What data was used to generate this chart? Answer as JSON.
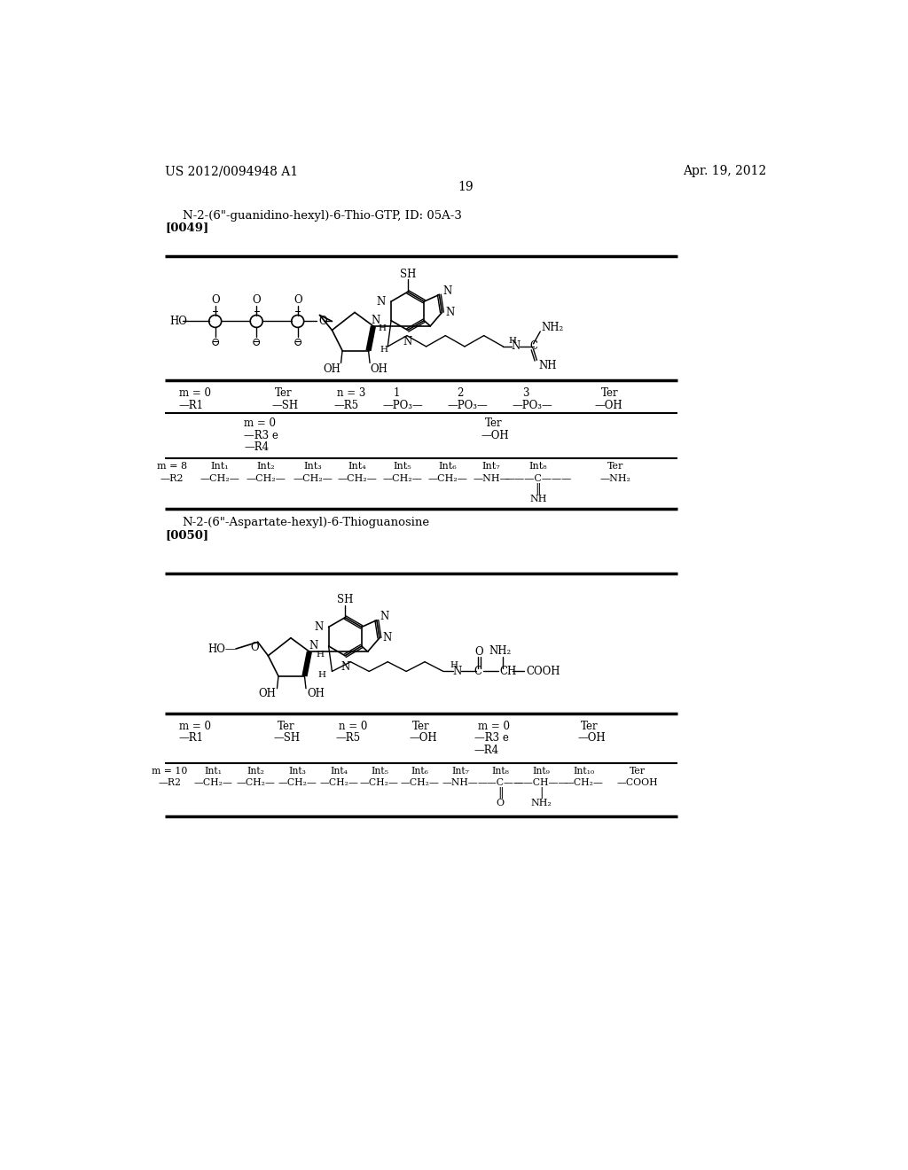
{
  "page_number": "19",
  "header_left": "US 2012/0094948 A1",
  "header_right": "Apr. 19, 2012",
  "bg_color": "#ffffff",
  "section1_title": "N-2-(6\"-guanidino-hexyl)-6-Thio-GTP, ID: 05A-3",
  "section1_ref": "[0049]",
  "section2_title": "N-2-(6\"-Aspartate-hexyl)-6-Thioguanosine",
  "section2_ref": "[0050]",
  "hline_color": "#000000",
  "text_color": "#000000"
}
